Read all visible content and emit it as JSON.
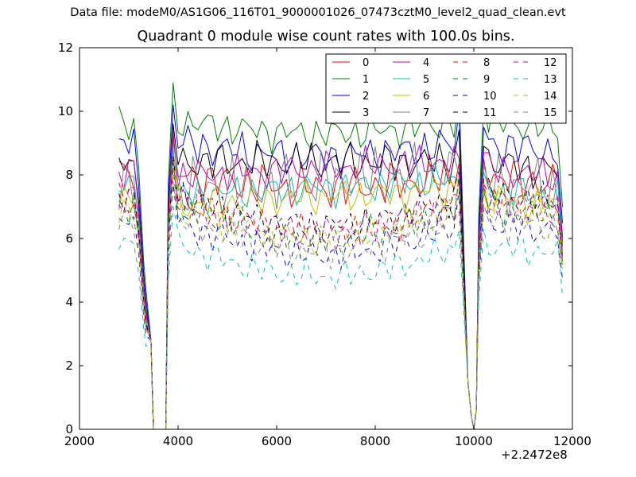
{
  "suptitle": "Data file: modeM0/AS1G06_116T01_9000001026_07473cztM0_level2_quad_clean.evt",
  "chart_data": {
    "type": "line",
    "title": "Quadrant 0 module wise count rates with 100.0s bins.",
    "xlabel": "",
    "ylabel": "",
    "x_offset_text": "+2.2472e8",
    "xlim": [
      2000,
      12000
    ],
    "ylim": [
      0,
      12
    ],
    "xticks": [
      2000,
      4000,
      6000,
      8000,
      10000,
      12000
    ],
    "yticks": [
      0,
      2,
      4,
      6,
      8,
      10,
      12
    ],
    "grid": false,
    "legend_position": "top-right",
    "legend_columns": 4,
    "x_segments": {
      "seg1": {
        "start": 2800,
        "step": 100,
        "count": 6
      },
      "seg2": {
        "start": 3800,
        "step": 100,
        "count": 60
      },
      "seg3": {
        "start": 10100,
        "step": 100,
        "count": 18
      }
    },
    "series": [
      {
        "name": "0",
        "color": "#ff0000",
        "dashed": false,
        "base": 8.0,
        "shape": "mid",
        "amp": 0.45,
        "phase": 0.3
      },
      {
        "name": "1",
        "color": "#008000",
        "dashed": false,
        "base": 9.7,
        "shape": "mid",
        "amp": 0.35,
        "phase": 1.1
      },
      {
        "name": "2",
        "color": "#0000ff",
        "dashed": false,
        "base": 9.0,
        "shape": "mid",
        "amp": 0.4,
        "phase": 2.0
      },
      {
        "name": "3",
        "color": "#000000",
        "dashed": false,
        "base": 8.4,
        "shape": "flat",
        "amp": 0.4,
        "phase": 2.7
      },
      {
        "name": "4",
        "color": "#bf00bf",
        "dashed": false,
        "base": 8.2,
        "shape": "rise",
        "amp": 0.35,
        "phase": 3.5
      },
      {
        "name": "5",
        "color": "#00bfbf",
        "dashed": false,
        "base": 7.6,
        "shape": "rise",
        "amp": 0.35,
        "phase": 4.2
      },
      {
        "name": "6",
        "color": "#bfbf00",
        "dashed": false,
        "base": 7.3,
        "shape": "rise",
        "amp": 0.35,
        "phase": 5.0
      },
      {
        "name": "7",
        "color": "#808080",
        "dashed": false,
        "base": 7.8,
        "shape": "rise",
        "amp": 0.6,
        "phase": 5.7
      },
      {
        "name": "8",
        "color": "#ff0000",
        "dashed": true,
        "base": 7.2,
        "shape": "dip",
        "amp": 0.35,
        "phase": 0.8
      },
      {
        "name": "9",
        "color": "#008000",
        "dashed": true,
        "base": 7.0,
        "shape": "dip",
        "amp": 0.35,
        "phase": 1.6
      },
      {
        "name": "10",
        "color": "#0000ff",
        "dashed": true,
        "base": 6.5,
        "shape": "dip",
        "amp": 0.35,
        "phase": 2.4
      },
      {
        "name": "11",
        "color": "#000000",
        "dashed": true,
        "base": 7.4,
        "shape": "dip",
        "amp": 0.35,
        "phase": 3.1
      },
      {
        "name": "12",
        "color": "#bf00bf",
        "dashed": true,
        "base": 7.2,
        "shape": "dip",
        "amp": 0.35,
        "phase": 3.9
      },
      {
        "name": "13",
        "color": "#00bfbf",
        "dashed": true,
        "base": 5.8,
        "shape": "dip",
        "amp": 0.3,
        "phase": 4.6
      },
      {
        "name": "14",
        "color": "#bfbf00",
        "dashed": true,
        "base": 7.0,
        "shape": "dip",
        "amp": 0.35,
        "phase": 5.3
      },
      {
        "name": "15",
        "color": "#808080",
        "dashed": true,
        "base": 6.6,
        "shape": "dip",
        "amp": 0.35,
        "phase": 6.0
      }
    ]
  }
}
